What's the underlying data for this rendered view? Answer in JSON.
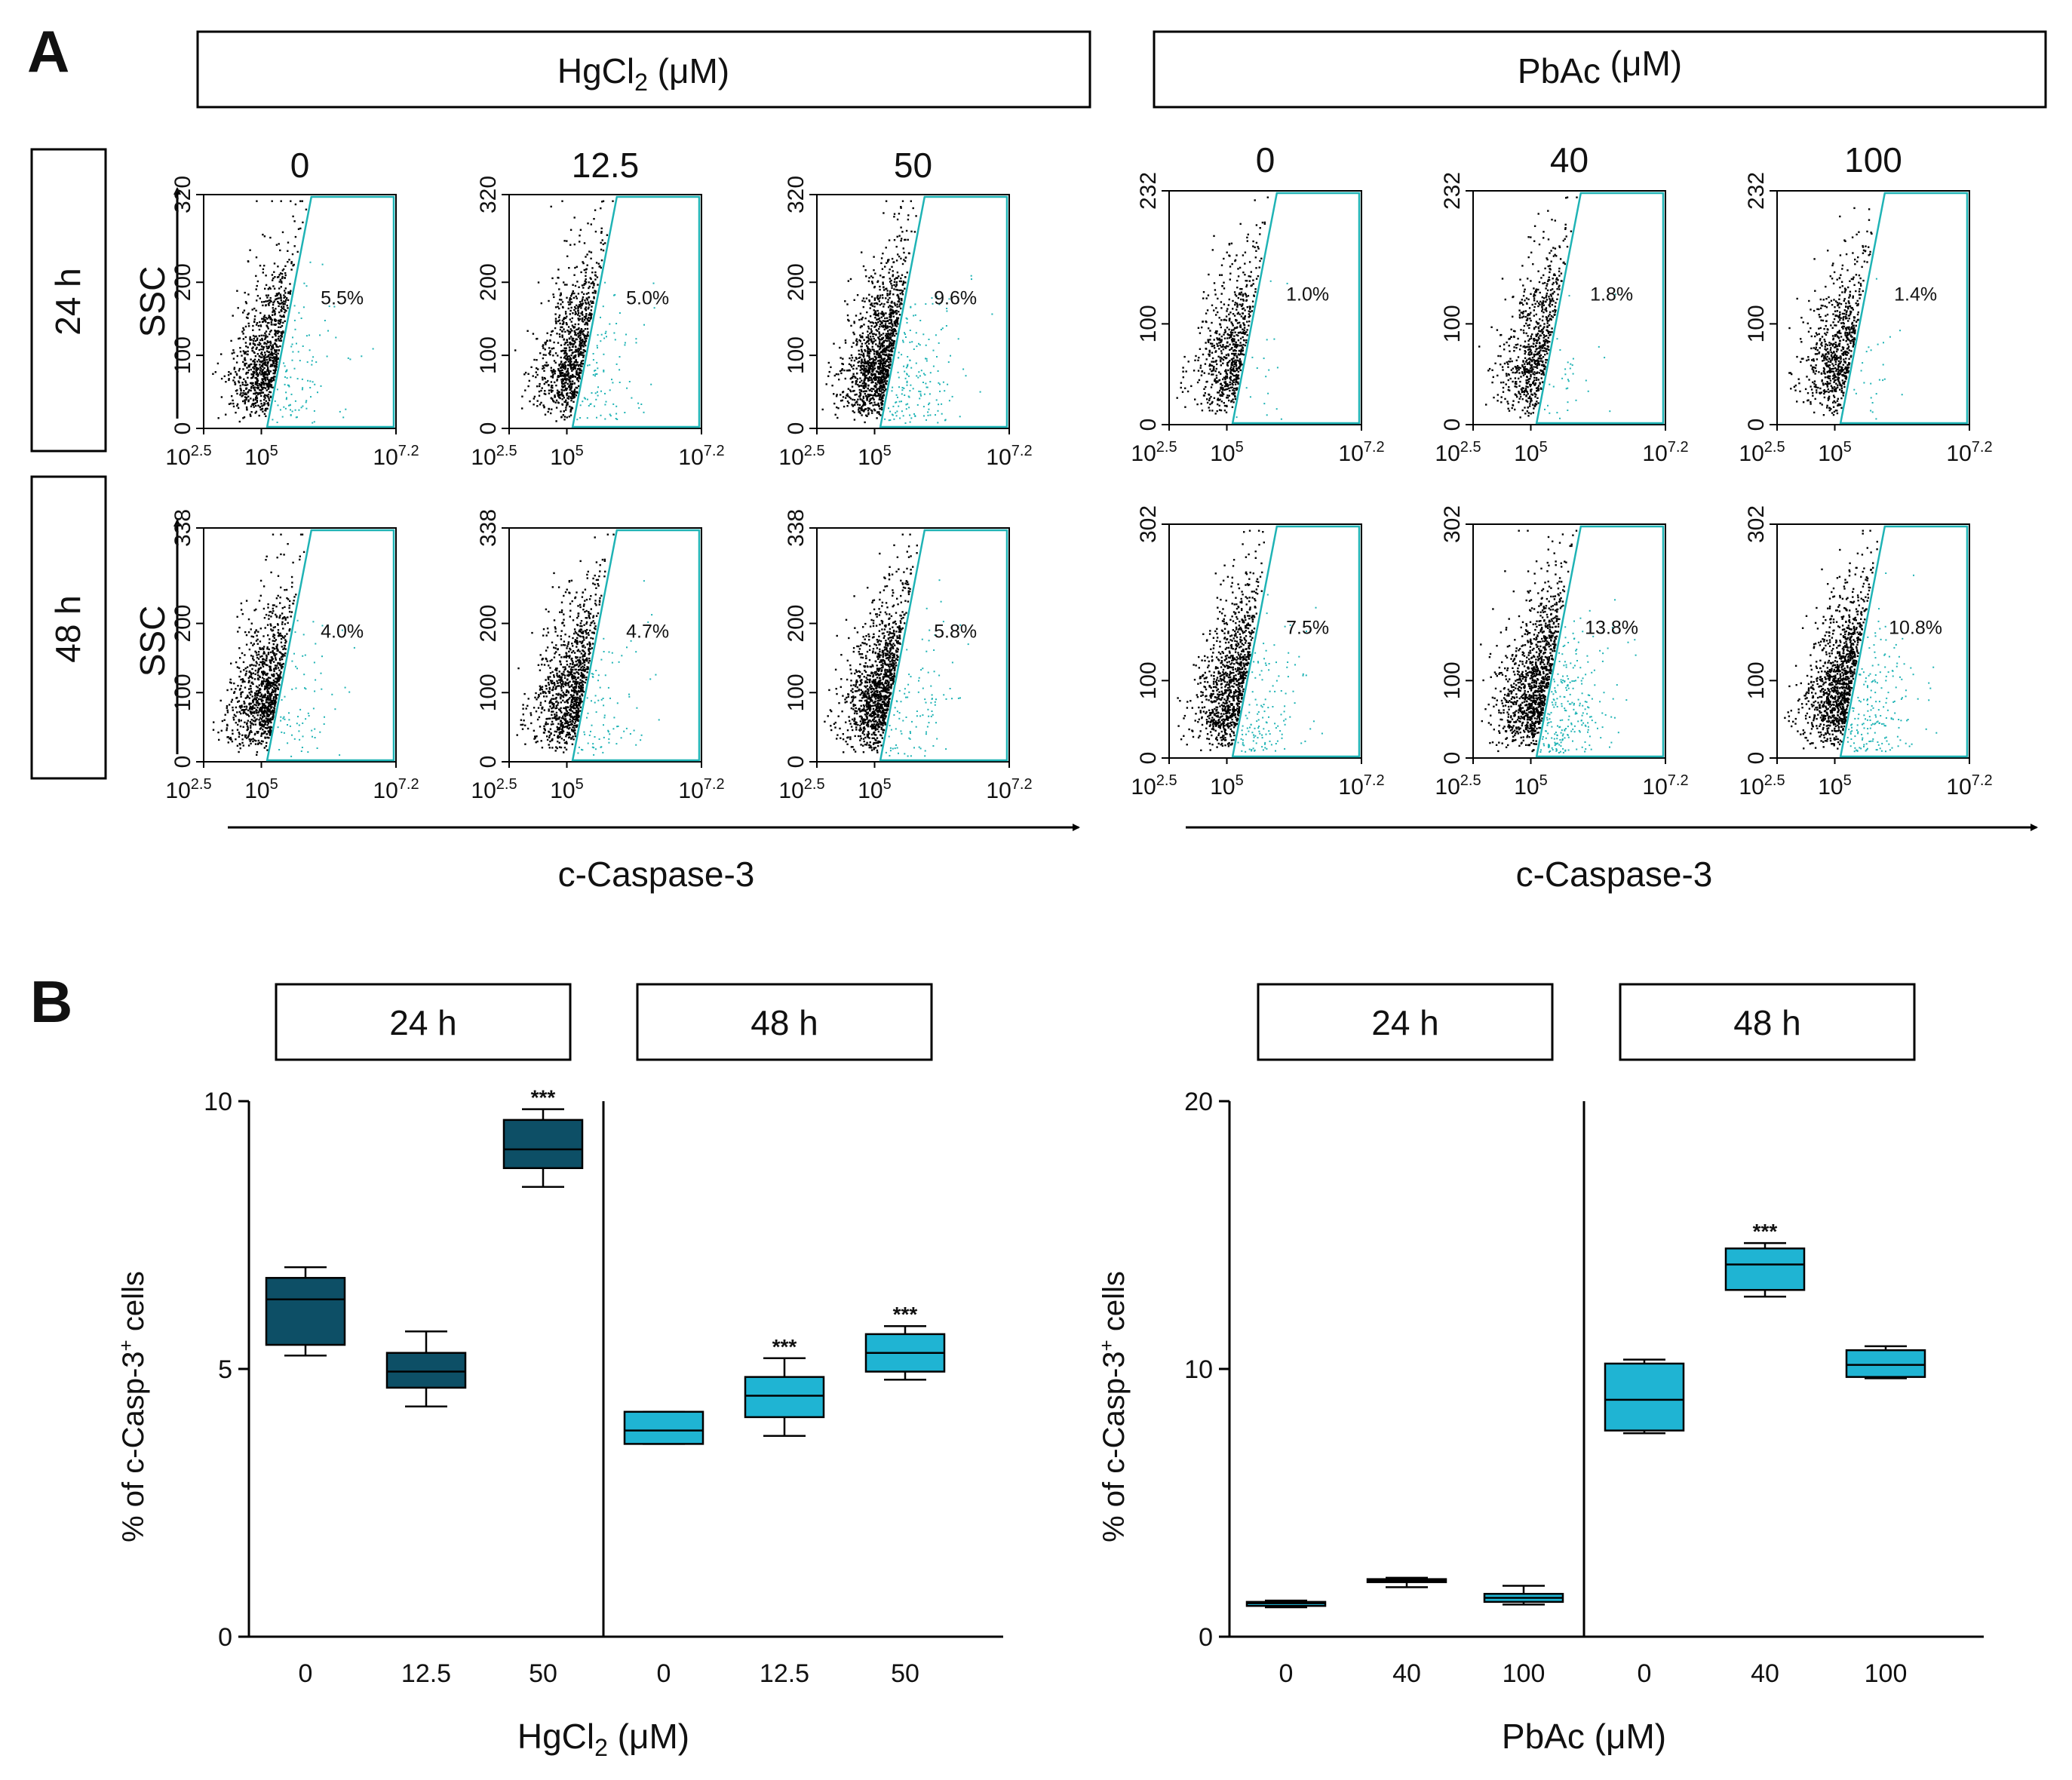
{
  "panel_a": {
    "label": "A",
    "headers": [
      {
        "main": "HgCl",
        "sub": "2",
        "unit": " (μM)"
      },
      {
        "main": "PbAc",
        "sub": "",
        "unit": " (μM)"
      }
    ],
    "rows": [
      "24 h",
      "48 h"
    ],
    "y_axis_label": "SSC",
    "x_axis_label": "c-Caspase-3",
    "concentrations": [
      [
        "0",
        "12.5",
        "50"
      ],
      [
        "0",
        "40",
        "100"
      ]
    ],
    "x_ticks": [
      {
        "base": "10",
        "exp": "2.5"
      },
      {
        "base": "10",
        "exp": "5"
      },
      {
        "base": "10",
        "exp": "7.2"
      }
    ],
    "y_ticks": [
      [
        [
          "0",
          "100",
          "200",
          "320"
        ],
        [
          "0",
          "100",
          "200",
          "338"
        ]
      ],
      [
        [
          "0",
          "100",
          "232"
        ],
        [
          "0",
          "100",
          "302"
        ]
      ]
    ],
    "percentages": [
      [
        [
          "5.5%",
          "5.0%",
          "9.6%"
        ],
        [
          "4.0%",
          "4.7%",
          "5.8%"
        ]
      ],
      [
        [
          "1.0%",
          "1.8%",
          "1.4%"
        ],
        [
          "7.5%",
          "13.8%",
          "10.8%"
        ]
      ]
    ],
    "colors": {
      "positive": "#1fb3b5",
      "negative": "#000000",
      "gate": "#1fb3b5"
    }
  },
  "panel_b": {
    "label": "B",
    "stars": "***",
    "colors": {
      "dark": "#0d4f66",
      "light": "#1fb4d3"
    }
  },
  "chart_data": [
    {
      "type": "box",
      "title": "",
      "group_labels": [
        "24 h",
        "48 h"
      ],
      "categories": [
        "0",
        "12.5",
        "50",
        "0",
        "12.5",
        "50"
      ],
      "xlabel_main": "HgCl",
      "xlabel_sub": "2",
      "xlabel_unit": " (μM)",
      "ylabel_pre": "% of c-Casp-3",
      "ylabel_sup": "+",
      "ylabel_post": " cells",
      "ylim": [
        0,
        10
      ],
      "yticks": [
        "0",
        "5",
        "10"
      ],
      "boxes": [
        {
          "min": 5.25,
          "q1": 5.45,
          "median": 6.3,
          "q3": 6.7,
          "max": 6.9,
          "group": 0,
          "sig": false
        },
        {
          "min": 4.3,
          "q1": 4.65,
          "median": 4.95,
          "q3": 5.3,
          "max": 5.7,
          "group": 0,
          "sig": false
        },
        {
          "min": 8.4,
          "q1": 8.75,
          "median": 9.1,
          "q3": 9.65,
          "max": 9.85,
          "group": 0,
          "sig": true
        },
        {
          "min": 3.6,
          "q1": 3.6,
          "median": 3.85,
          "q3": 4.2,
          "max": 4.2,
          "group": 1,
          "sig": false
        },
        {
          "min": 3.75,
          "q1": 4.1,
          "median": 4.5,
          "q3": 4.85,
          "max": 5.2,
          "group": 1,
          "sig": true
        },
        {
          "min": 4.8,
          "q1": 4.95,
          "median": 5.3,
          "q3": 5.65,
          "max": 5.8,
          "group": 1,
          "sig": true
        }
      ]
    },
    {
      "type": "box",
      "title": "",
      "group_labels": [
        "24 h",
        "48 h"
      ],
      "categories": [
        "0",
        "40",
        "100",
        "0",
        "40",
        "100"
      ],
      "xlabel_main": "PbAc",
      "xlabel_sub": "",
      "xlabel_unit": " (μM)",
      "ylabel_pre": "% of c-Casp-3",
      "ylabel_sup": "+",
      "ylabel_post": " cells",
      "ylim": [
        0,
        20
      ],
      "yticks": [
        "0",
        "10",
        "20"
      ],
      "boxes": [
        {
          "min": 1.1,
          "q1": 1.15,
          "median": 1.25,
          "q3": 1.3,
          "max": 1.35,
          "group": 0,
          "sig": false
        },
        {
          "min": 1.85,
          "q1": 2.05,
          "median": 2.1,
          "q3": 2.15,
          "max": 2.2,
          "group": 0,
          "sig": false
        },
        {
          "min": 1.2,
          "q1": 1.3,
          "median": 1.45,
          "q3": 1.6,
          "max": 1.9,
          "group": 0,
          "sig": false
        },
        {
          "min": 7.6,
          "q1": 7.7,
          "median": 8.85,
          "q3": 10.2,
          "max": 10.35,
          "group": 1,
          "sig": false
        },
        {
          "min": 12.7,
          "q1": 12.95,
          "median": 13.9,
          "q3": 14.5,
          "max": 14.7,
          "group": 1,
          "sig": true
        },
        {
          "min": 9.65,
          "q1": 9.7,
          "median": 10.15,
          "q3": 10.7,
          "max": 10.85,
          "group": 1,
          "sig": false
        }
      ]
    }
  ]
}
